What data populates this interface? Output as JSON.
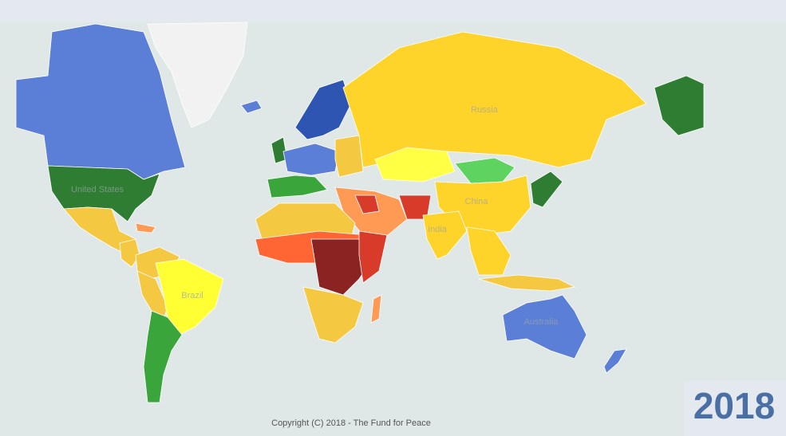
{
  "map": {
    "labels": [
      "United States",
      "Russia",
      "China",
      "India",
      "Brazil",
      "Australia"
    ],
    "copyright": "Copyright (C) 2018 - The Fund for Peace",
    "year": "2018"
  }
}
